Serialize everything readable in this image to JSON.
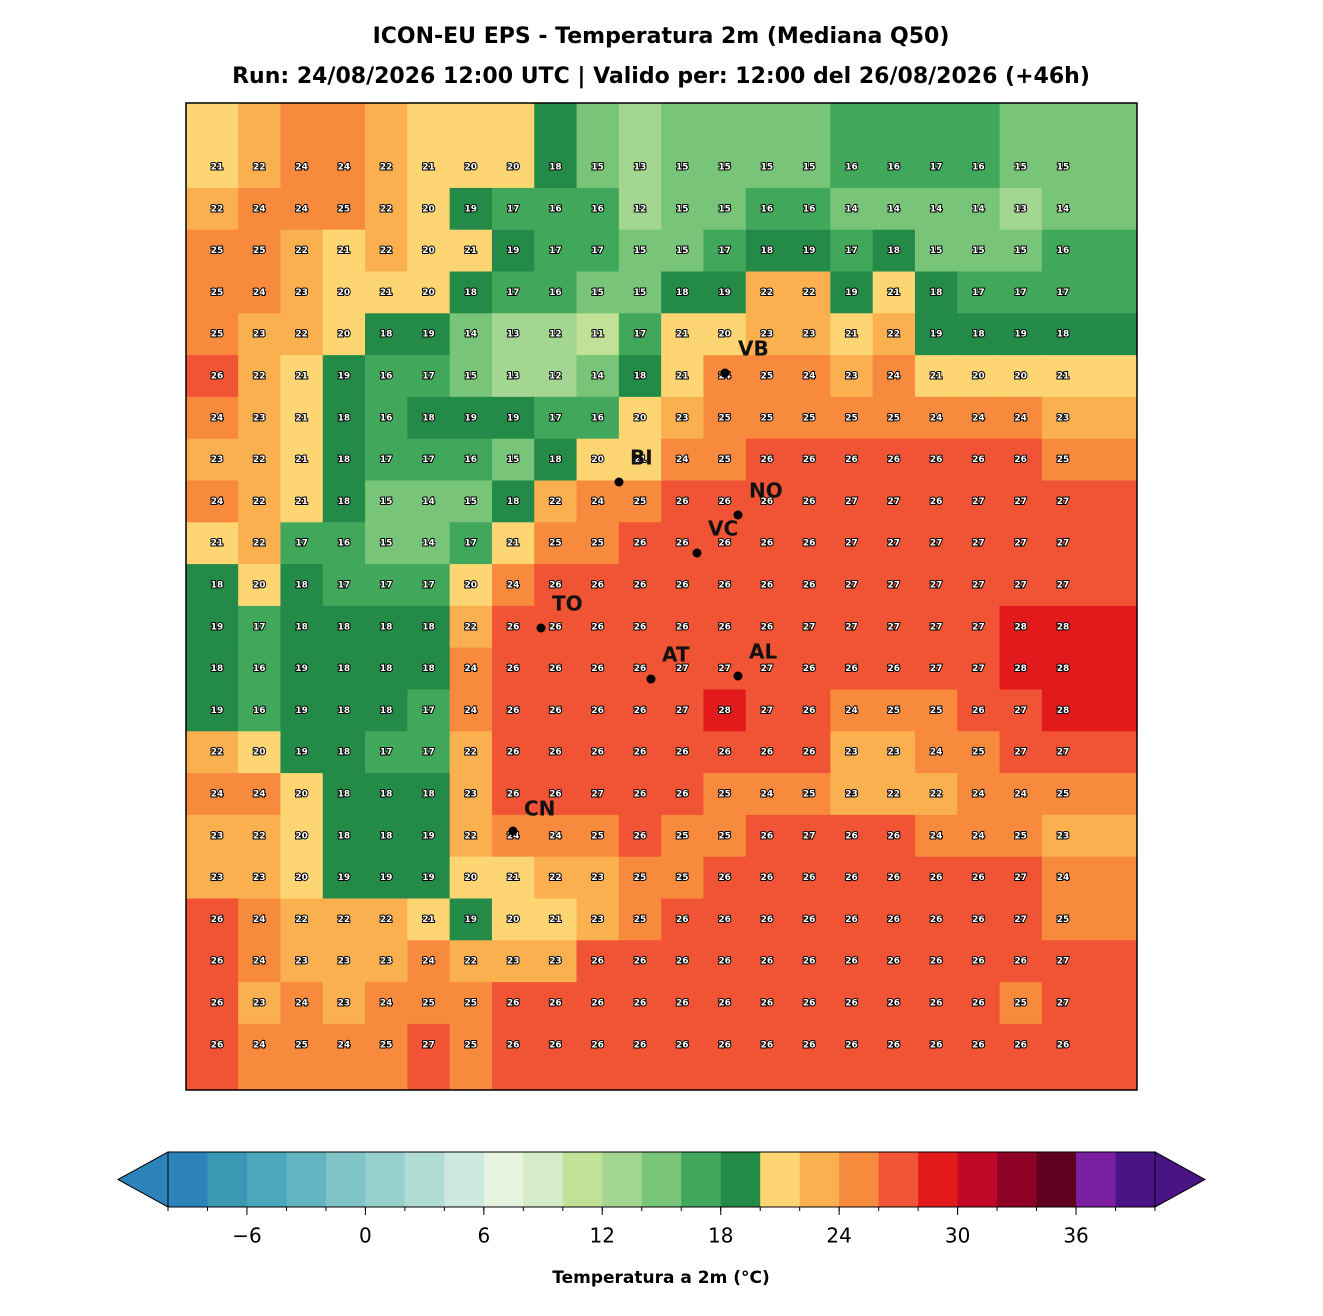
{
  "chart_data": {
    "type": "heatmap",
    "title": "ICON-EU EPS - Temperatura 2m (Mediana Q50)",
    "subtitle": "Run: 24/08/2026 12:00 UTC | Valido per: 12:00 del 26/08/2026 (+46h)",
    "values": [
      [
        21,
        22,
        24,
        24,
        22,
        21,
        20,
        20,
        18,
        15,
        13,
        15,
        15,
        15,
        15,
        16,
        16,
        17,
        16,
        15,
        15
      ],
      [
        22,
        24,
        24,
        25,
        22,
        20,
        19,
        17,
        16,
        16,
        12,
        15,
        15,
        16,
        16,
        14,
        14,
        14,
        14,
        13,
        14
      ],
      [
        25,
        25,
        22,
        21,
        22,
        20,
        21,
        19,
        17,
        17,
        15,
        15,
        17,
        18,
        19,
        17,
        18,
        15,
        15,
        15,
        16
      ],
      [
        25,
        24,
        23,
        20,
        21,
        20,
        18,
        17,
        16,
        15,
        15,
        18,
        19,
        22,
        22,
        19,
        21,
        18,
        17,
        17,
        17
      ],
      [
        25,
        23,
        22,
        20,
        18,
        19,
        14,
        13,
        12,
        11,
        17,
        21,
        20,
        23,
        23,
        21,
        22,
        19,
        18,
        19,
        18
      ],
      [
        26,
        22,
        21,
        19,
        16,
        17,
        15,
        13,
        12,
        14,
        18,
        21,
        24,
        25,
        24,
        23,
        24,
        21,
        20,
        20,
        21
      ],
      [
        24,
        23,
        21,
        18,
        16,
        18,
        19,
        19,
        17,
        16,
        20,
        23,
        25,
        25,
        25,
        25,
        25,
        24,
        24,
        24,
        23
      ],
      [
        23,
        22,
        21,
        18,
        17,
        17,
        16,
        15,
        18,
        20,
        21,
        24,
        25,
        26,
        26,
        26,
        26,
        26,
        26,
        26,
        25
      ],
      [
        24,
        22,
        21,
        18,
        15,
        14,
        15,
        18,
        22,
        24,
        25,
        26,
        26,
        26,
        26,
        27,
        27,
        26,
        27,
        27,
        27
      ],
      [
        21,
        22,
        17,
        16,
        15,
        14,
        17,
        21,
        25,
        25,
        26,
        26,
        26,
        26,
        26,
        27,
        27,
        27,
        27,
        27,
        27
      ],
      [
        18,
        20,
        18,
        17,
        17,
        17,
        20,
        24,
        26,
        26,
        26,
        26,
        26,
        26,
        26,
        27,
        27,
        27,
        27,
        27,
        27
      ],
      [
        19,
        17,
        18,
        18,
        18,
        18,
        22,
        26,
        26,
        26,
        26,
        26,
        26,
        26,
        27,
        27,
        27,
        27,
        27,
        28,
        28
      ],
      [
        18,
        16,
        19,
        18,
        18,
        18,
        24,
        26,
        26,
        26,
        26,
        27,
        27,
        27,
        26,
        26,
        26,
        27,
        27,
        28,
        28
      ],
      [
        19,
        16,
        19,
        18,
        18,
        17,
        24,
        26,
        26,
        26,
        26,
        27,
        28,
        27,
        26,
        24,
        25,
        25,
        26,
        27,
        28
      ],
      [
        22,
        20,
        19,
        18,
        17,
        17,
        22,
        26,
        26,
        26,
        26,
        26,
        26,
        26,
        26,
        23,
        23,
        24,
        25,
        27,
        27
      ],
      [
        24,
        24,
        20,
        18,
        18,
        18,
        23,
        26,
        26,
        27,
        26,
        26,
        25,
        24,
        25,
        23,
        22,
        22,
        24,
        24,
        25
      ],
      [
        23,
        22,
        20,
        18,
        18,
        19,
        22,
        24,
        24,
        25,
        26,
        25,
        25,
        26,
        27,
        26,
        26,
        24,
        24,
        25,
        23
      ],
      [
        23,
        23,
        20,
        19,
        19,
        19,
        20,
        21,
        22,
        23,
        25,
        25,
        26,
        26,
        26,
        26,
        26,
        26,
        26,
        27,
        24
      ],
      [
        26,
        24,
        22,
        22,
        22,
        21,
        19,
        20,
        21,
        23,
        25,
        26,
        26,
        26,
        26,
        26,
        26,
        26,
        26,
        27,
        25
      ],
      [
        26,
        24,
        23,
        23,
        23,
        24,
        22,
        23,
        23,
        26,
        26,
        26,
        26,
        26,
        26,
        26,
        26,
        26,
        26,
        26,
        27
      ],
      [
        26,
        23,
        24,
        23,
        24,
        25,
        25,
        26,
        26,
        26,
        26,
        26,
        26,
        26,
        26,
        26,
        26,
        26,
        26,
        25,
        27
      ],
      [
        26,
        24,
        25,
        24,
        25,
        27,
        25,
        26,
        26,
        26,
        26,
        26,
        26,
        26,
        26,
        26,
        26,
        26,
        26,
        26,
        26
      ]
    ],
    "stations": [
      "VB",
      "BI",
      "NO",
      "VC",
      "TO",
      "AT",
      "AL",
      "CN"
    ],
    "colorbar": {
      "label": "Temperatura a 2m (°C)",
      "levels": [
        -10,
        -8,
        -6,
        -4,
        -2,
        0,
        2,
        4,
        6,
        8,
        10,
        12,
        14,
        16,
        18,
        20,
        22,
        24,
        26,
        28,
        30,
        32,
        34,
        36,
        38,
        40
      ],
      "colors": [
        "#2b83ba",
        "#3a98b4",
        "#4ba7bc",
        "#63b3c0",
        "#7fc4c6",
        "#98d0cc",
        "#b1dcd3",
        "#cde8dd",
        "#e5f3df",
        "#d5ecc8",
        "#c1e296",
        "#a2d691",
        "#78c478",
        "#41a85b",
        "#238a48",
        "#fdd673",
        "#fbb050",
        "#f88a3e",
        "#f05434",
        "#e31a1c",
        "#bf0826",
        "#8f0226",
        "#5f0021",
        "#7b1fa2",
        "#4a1486"
      ],
      "under_color": "#2b83ba",
      "over_color": "#4a1486",
      "ticks": [
        {
          "value": -6,
          "label": "−6"
        },
        0,
        6,
        12,
        18,
        24,
        30,
        36
      ]
    }
  }
}
